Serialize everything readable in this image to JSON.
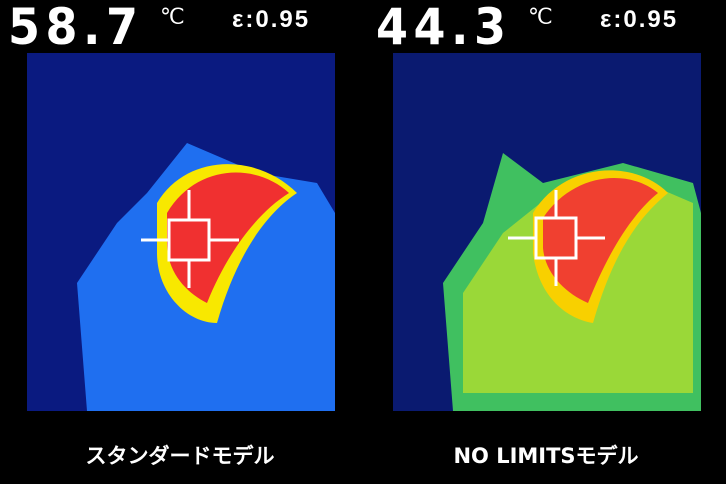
{
  "left": {
    "temperature": "58.7",
    "unit": "℃",
    "emissivity": "ε:0.95",
    "caption": "スタンダードモデル"
  },
  "right": {
    "temperature": "44.3",
    "unit": "℃",
    "emissivity": "ε:0.95",
    "caption": "NO LIMITSモデル"
  },
  "icons": [
    "crosshair-icon"
  ]
}
